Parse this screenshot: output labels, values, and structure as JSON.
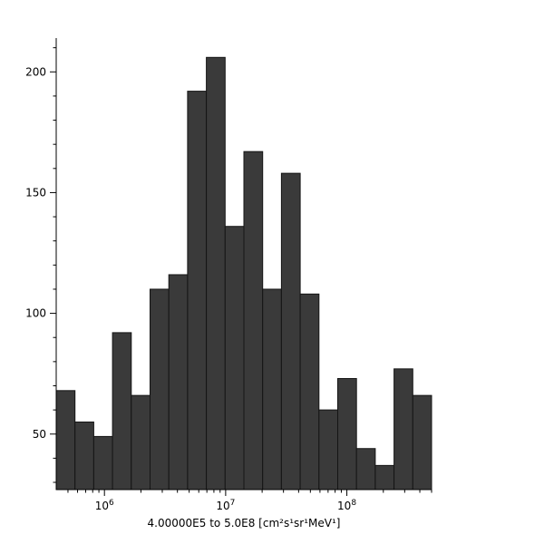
{
  "chart_data": {
    "type": "bar",
    "subtype": "histogram",
    "title": "",
    "xlabel": "4.00000E5 to 5.0E8 [cm²s¹sr¹MeV¹]",
    "ylabel": "",
    "x_scale": "log",
    "x_min": 400000,
    "x_max": 500000000,
    "x_major_tick_exponents": [
      6,
      7,
      8
    ],
    "x_tick_base": "10",
    "y_ticks": [
      50,
      100,
      150,
      200
    ],
    "y_minor_step": 10,
    "ylim": [
      27,
      214
    ],
    "bins": 20,
    "values": [
      68,
      55,
      49,
      92,
      66,
      110,
      116,
      192,
      206,
      136,
      167,
      110,
      158,
      108,
      60,
      73,
      44,
      37,
      77,
      66
    ],
    "grid": false,
    "legend": false,
    "colors": {
      "bar_fill": "#3a3a3a",
      "bar_edge": "#151515",
      "axis": "#000000",
      "background": "#ffffff"
    }
  }
}
